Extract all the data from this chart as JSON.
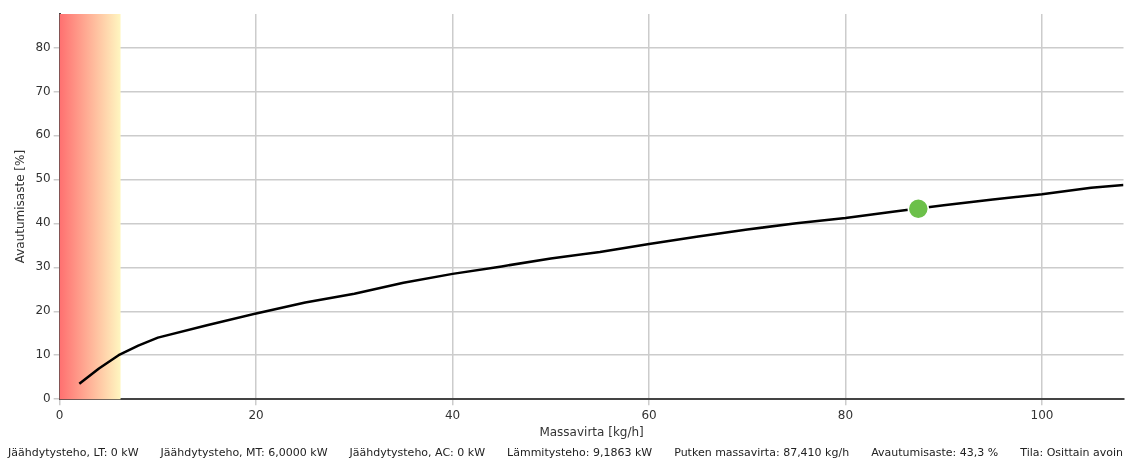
{
  "chart_data": {
    "type": "line",
    "xlabel": "Massavirta [kg/h]",
    "ylabel": "Avautumisaste [%]",
    "xlim": [
      0,
      108.3
    ],
    "xticks": [
      0,
      20,
      40,
      60,
      80,
      100
    ],
    "ylim": [
      0,
      87.6
    ],
    "yticks": [
      0,
      10,
      20,
      30,
      40,
      50,
      60,
      70,
      80
    ],
    "grid": true,
    "legend": false,
    "series": [
      {
        "color": "#000000",
        "marker": "none",
        "x": [
          2,
          4,
          6,
          8,
          10,
          15,
          20,
          25,
          30,
          35,
          40,
          45,
          50,
          55,
          60,
          65,
          70,
          75,
          80,
          85,
          90,
          95,
          100,
          105,
          108.3
        ],
        "values": [
          3.5,
          7,
          10,
          12.2,
          14,
          16.8,
          19.5,
          22,
          24,
          26.5,
          28.5,
          30.2,
          32,
          33.5,
          35.3,
          37,
          38.6,
          40,
          41.2,
          42.7,
          44.1,
          45.4,
          46.6,
          48.1,
          48.7
        ]
      },
      {
        "type": "scatter",
        "color": "#6cc04a",
        "marker": "circle",
        "x": [
          87.41
        ],
        "values": [
          43.3
        ]
      }
    ],
    "bands": [
      {
        "axis": "x",
        "from": 0,
        "to": 6.2,
        "color": "#ff7070"
      }
    ],
    "annotations": [
      "Jäähdytysteho, LT: 0 kW",
      "Jäähdytysteho, MT: 6,0000 kW",
      "Jäähdytysteho, AC: 0 kW",
      "Lämmitysteho: 9,1863 kW",
      "Putken massavirta: 87,410 kg/h",
      "Avautumisaste: 43,3 %",
      "Tila: Osittain avoin"
    ]
  }
}
